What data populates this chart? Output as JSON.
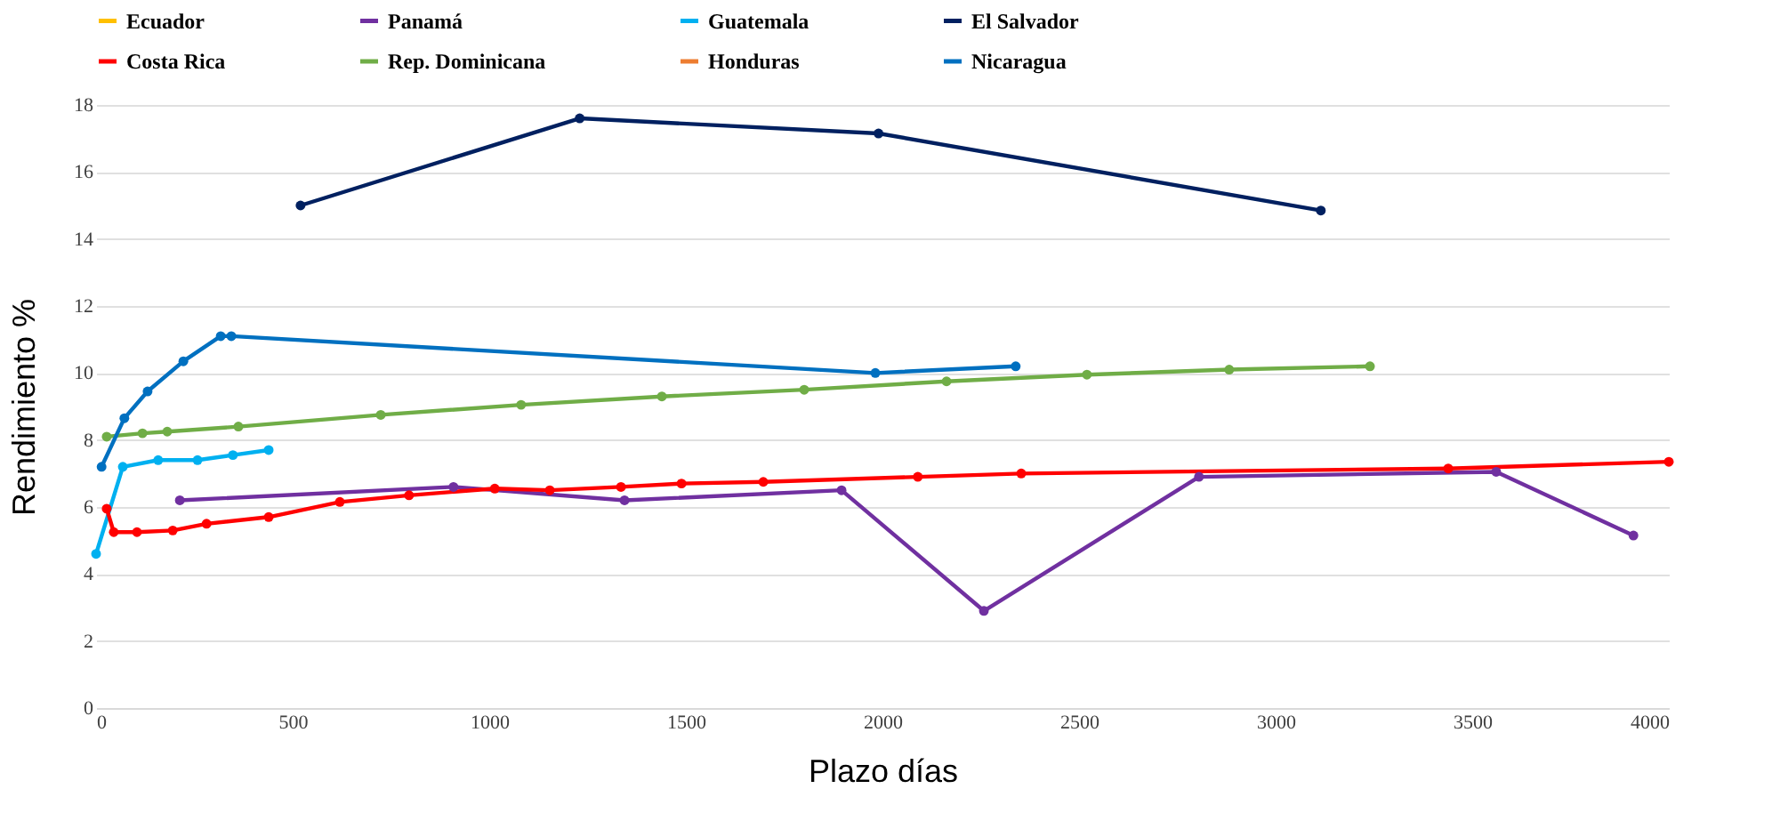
{
  "chart_data": {
    "type": "line",
    "xlabel": "Plazo días",
    "ylabel": "Rendimiento %",
    "xlim": [
      0,
      4000
    ],
    "xticks": [
      0,
      500,
      1000,
      1500,
      2000,
      2500,
      3000,
      3500,
      4000
    ],
    "ylim": [
      0,
      18
    ],
    "yticks": [
      0,
      2,
      4,
      6,
      8,
      10,
      12,
      14,
      16,
      18
    ],
    "grid": "y",
    "legend": "top",
    "marker": "circle",
    "line_style": "solid",
    "series": [
      {
        "name": "Ecuador",
        "color": "#ffc000"
      },
      {
        "name": "Panamá",
        "color": "#7030a0",
        "x": [
          213,
          909,
          1344,
          1896,
          2258,
          2805,
          3561,
          3910
        ],
        "values": [
          6.2,
          6.6,
          6.2,
          6.5,
          2.9,
          6.9,
          7.05,
          5.15
        ]
      },
      {
        "name": "Guatemala",
        "color": "#00b0f0",
        "x": [
          0,
          68,
          158,
          258,
          348,
          439
        ],
        "values": [
          4.6,
          7.2,
          7.4,
          7.4,
          7.55,
          7.7
        ]
      },
      {
        "name": "El Salvador",
        "color": "#002060",
        "x": [
          520,
          1230,
          1990,
          3115
        ],
        "values": [
          15.0,
          17.6,
          17.15,
          14.85
        ]
      },
      {
        "name": "Costa Rica",
        "color": "#ff0000",
        "x": [
          27,
          45,
          104,
          195,
          281,
          439,
          620,
          796,
          1014,
          1154,
          1335,
          1489,
          1697,
          2090,
          2353,
          3439,
          4000
        ],
        "values": [
          5.95,
          5.25,
          5.25,
          5.3,
          5.5,
          5.7,
          6.15,
          6.35,
          6.55,
          6.5,
          6.6,
          6.7,
          6.75,
          6.9,
          7.0,
          7.15,
          7.35
        ]
      },
      {
        "name": "Rep. Dominicana",
        "color": "#70ad47",
        "x": [
          27,
          118,
          181,
          362,
          724,
          1081,
          1439,
          1801,
          2163,
          2520,
          2882,
          3240
        ],
        "values": [
          8.1,
          8.2,
          8.25,
          8.4,
          8.75,
          9.05,
          9.3,
          9.5,
          9.75,
          9.95,
          10.1,
          10.2
        ]
      },
      {
        "name": "Honduras",
        "color": "#ed7d31"
      },
      {
        "name": "Nicaragua",
        "color": "#0070c0",
        "x": [
          14,
          72,
          131,
          222,
          317,
          344,
          1982,
          2339
        ],
        "values": [
          7.2,
          8.65,
          9.45,
          10.35,
          11.1,
          11.1,
          10.0,
          10.2
        ]
      }
    ]
  }
}
